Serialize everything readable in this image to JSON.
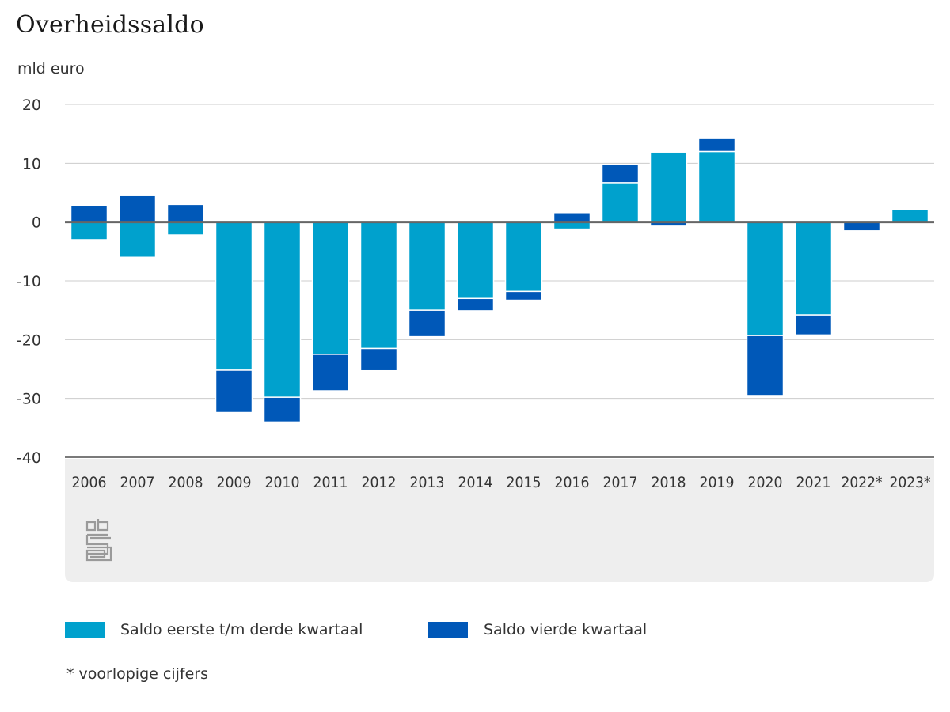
{
  "title": "Overheidssaldo",
  "unit_label": "mld euro",
  "legend": [
    {
      "label": "Saldo eerste t/m derde kwartaal",
      "color": "#00a1cd"
    },
    {
      "label": "Saldo vierde kwartaal",
      "color": "#0058b8"
    }
  ],
  "footnote": "* voorlopige cijfers",
  "logo": "cbs-logo-icon",
  "chart_data": {
    "type": "bar",
    "stacked": true,
    "title": "Overheidssaldo",
    "ylabel": "mld euro",
    "xlabel": "",
    "ylim": [
      -40,
      20
    ],
    "yticks": [
      20,
      10,
      0,
      -10,
      -20,
      -30,
      -40
    ],
    "categories": [
      "2006",
      "2007",
      "2008",
      "2009",
      "2010",
      "2011",
      "2012",
      "2013",
      "2014",
      "2015",
      "2016",
      "2017",
      "2018",
      "2019",
      "2020",
      "2021",
      "2022*",
      "2023*"
    ],
    "series": [
      {
        "name": "Saldo eerste t/m derde kwartaal",
        "color": "#00a1cd",
        "values": [
          -3.0,
          -6.0,
          -2.2,
          -25.2,
          -29.8,
          -22.5,
          -21.5,
          -15.0,
          -13.0,
          -11.8,
          -1.2,
          6.7,
          11.9,
          12.0,
          -19.3,
          -15.8,
          0.0,
          2.2
        ]
      },
      {
        "name": "Saldo vierde kwartaal",
        "color": "#0058b8",
        "values": [
          2.8,
          4.5,
          3.0,
          -7.2,
          -4.2,
          -6.2,
          -3.8,
          -4.5,
          -2.1,
          -1.5,
          1.6,
          3.1,
          -0.7,
          2.2,
          -10.2,
          -3.4,
          -1.5,
          0.0
        ]
      }
    ]
  }
}
